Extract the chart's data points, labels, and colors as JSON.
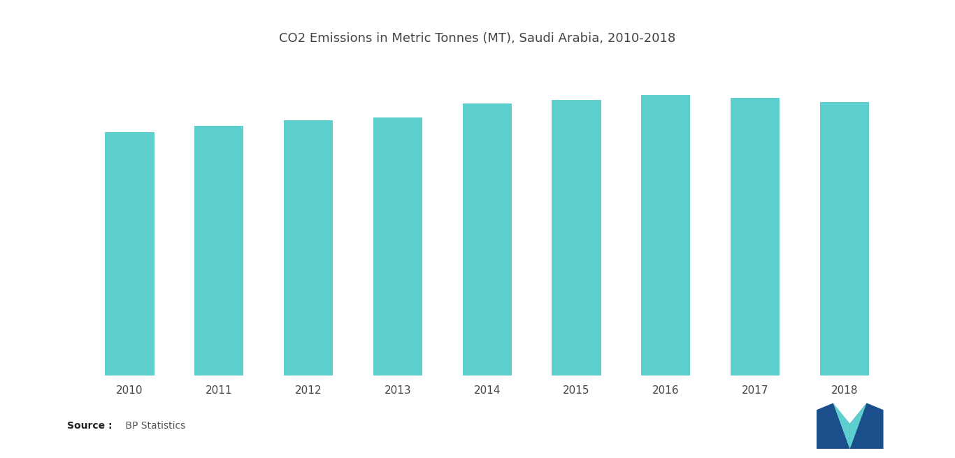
{
  "title": "CO2 Emissions in Metric Tonnes (MT), Saudi Arabia, 2010-2018",
  "categories": [
    "2010",
    "2011",
    "2012",
    "2013",
    "2014",
    "2015",
    "2016",
    "2017",
    "2018"
  ],
  "values": [
    531,
    545,
    558,
    563,
    594,
    601,
    612,
    607,
    597
  ],
  "bar_color": "#5ECFCF",
  "background_color": "#ffffff",
  "title_fontsize": 13,
  "tick_fontsize": 11,
  "source_bold": "Source :",
  "source_normal": " BP Statistics",
  "ylim_min": 0,
  "ylim_max": 680,
  "bar_width": 0.55,
  "logo_dark": "#1a4f8b",
  "logo_teal": "#5ECFCF",
  "text_color": "#444444"
}
